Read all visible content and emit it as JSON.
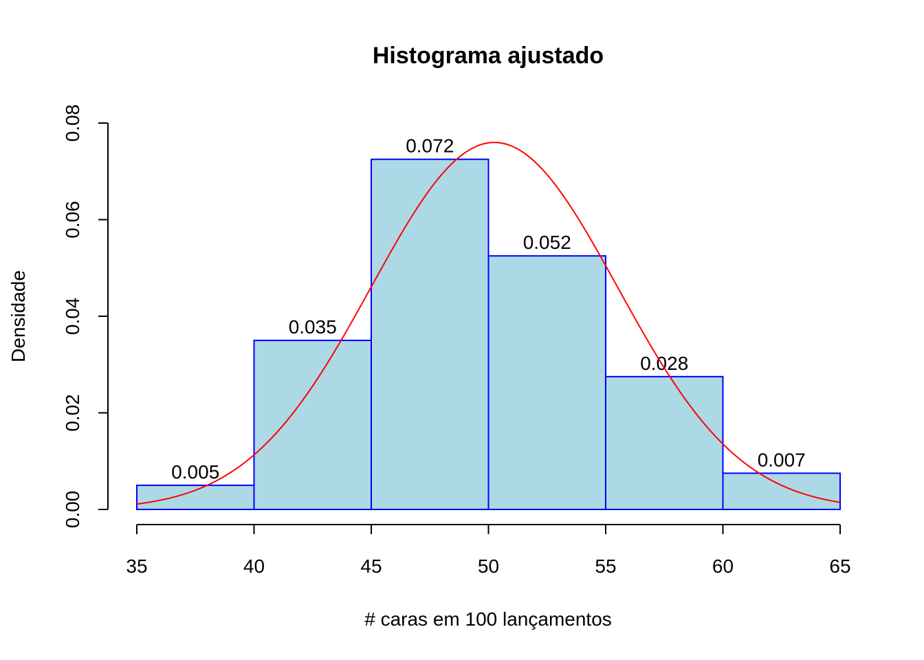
{
  "chart_data": {
    "type": "bar",
    "title": "Histograma ajustado",
    "xlabel": "# caras em 100 lançamentos",
    "ylabel": "Densidade",
    "bins": [
      {
        "from": 35,
        "to": 40,
        "value": 0.005,
        "label": "0.005"
      },
      {
        "from": 40,
        "to": 45,
        "value": 0.035,
        "label": "0.035"
      },
      {
        "from": 45,
        "to": 50,
        "value": 0.0725,
        "label": "0.072"
      },
      {
        "from": 50,
        "to": 55,
        "value": 0.0525,
        "label": "0.052"
      },
      {
        "from": 55,
        "to": 60,
        "value": 0.0275,
        "label": "0.028"
      },
      {
        "from": 60,
        "to": 65,
        "value": 0.0075,
        "label": "0.007"
      }
    ],
    "density_curve": {
      "type": "normal",
      "mean": 50.25,
      "sd": 5.25,
      "color": "#ff0000"
    },
    "xlim": [
      35,
      65
    ],
    "ylim": [
      0,
      0.08
    ],
    "x_ticks": [
      "35",
      "40",
      "45",
      "50",
      "55",
      "60",
      "65"
    ],
    "y_ticks": [
      "0.00",
      "0.02",
      "0.04",
      "0.06",
      "0.08"
    ],
    "grid": false,
    "bar_fill": "#add8e6",
    "bar_border": "#0000ff"
  }
}
